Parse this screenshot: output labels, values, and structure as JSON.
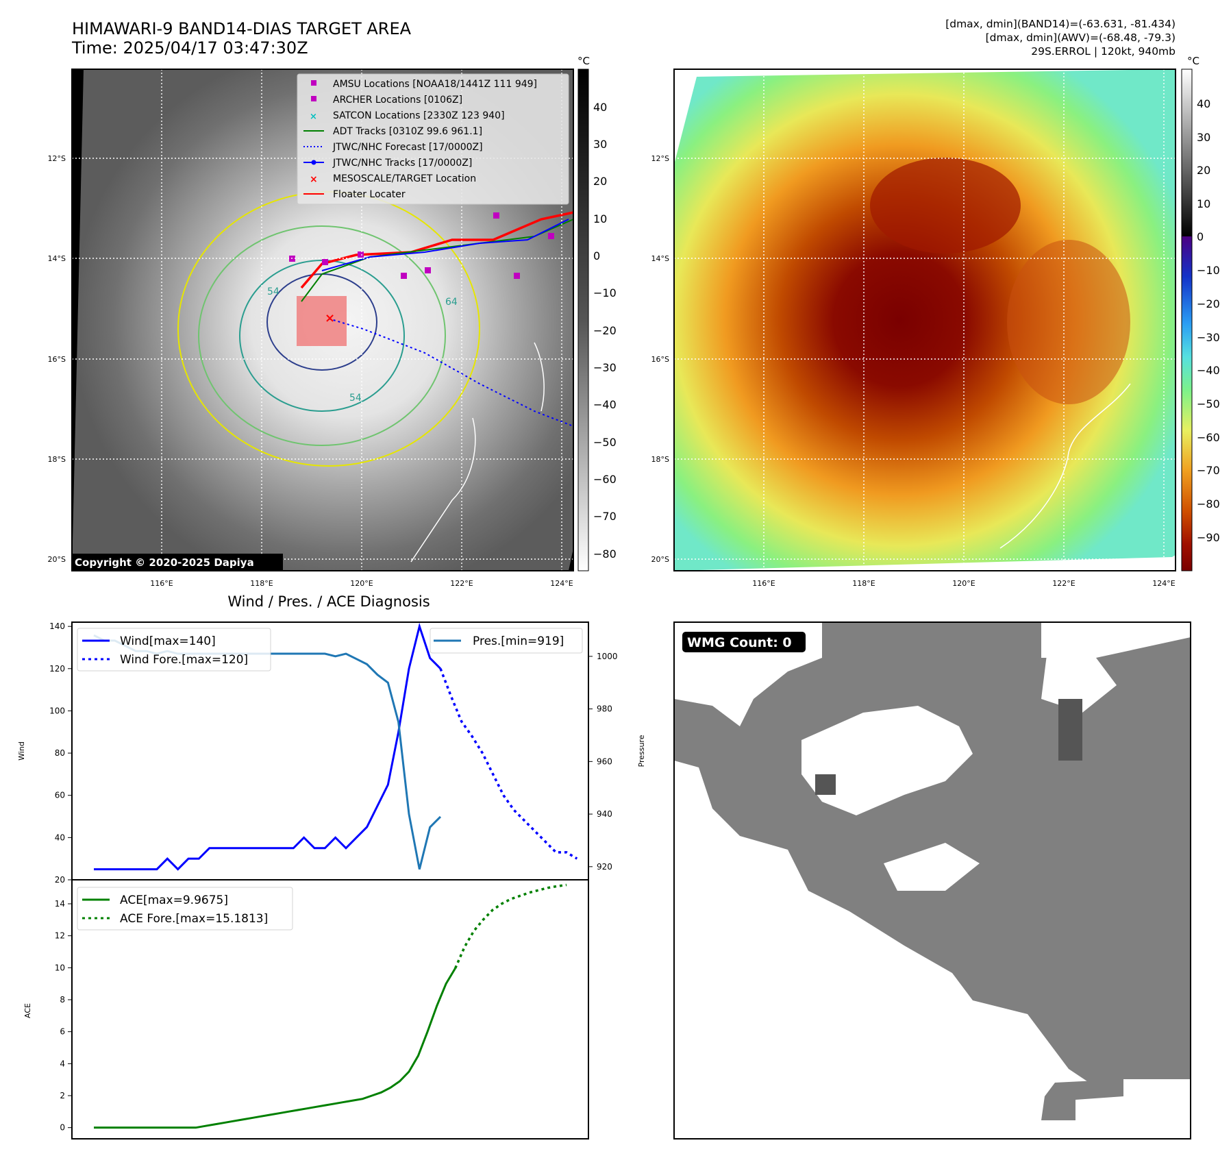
{
  "header": {
    "title_line1": "HIMAWARI-9 BAND14-DIAS TARGET AREA",
    "title_line2": "Time: 2025/04/17 03:47:30Z",
    "info_line1": "[dmax, dmin](BAND14)=(-63.631, -81.434)",
    "info_line2": "[dmax, dmin](AWV)=(-68.48, -79.3)",
    "info_line3": "29S.ERROL | 120kt, 940mb"
  },
  "colors": {
    "wind": "#0000ff",
    "pressure": "#1f77b4",
    "ace": "#008000",
    "track_red": "#ff0000",
    "amsu": "#c000c0",
    "satcon": "#00bfbf"
  },
  "map_left": {
    "colorbar_unit": "°C",
    "colorbar_ticks": [
      "40",
      "30",
      "20",
      "10",
      "0",
      "−10",
      "−20",
      "−30",
      "−40",
      "−50",
      "−60",
      "−70",
      "−80"
    ],
    "lat_labels": [
      "12°S",
      "14°S",
      "16°S",
      "18°S",
      "20°S"
    ],
    "lon_labels": [
      "116°E",
      "118°E",
      "120°E",
      "122°E",
      "124°E"
    ],
    "contour_labels": [
      "54",
      "64",
      "54"
    ],
    "copyright": "Copyright © 2020-2025 Dapiya",
    "legend": [
      {
        "label": "AMSU Locations [NOAA18/1441Z 111 949]",
        "icon": "magenta-square"
      },
      {
        "label": "ARCHER Locations [0106Z]",
        "icon": "magenta-square"
      },
      {
        "label": "SATCON Locations [2330Z 123 940]",
        "icon": "cyan-x"
      },
      {
        "label": "ADT Tracks [0310Z 99.6 961.1]",
        "icon": "green-line"
      },
      {
        "label": "JTWC/NHC Forecast [17/0000Z]",
        "icon": "blue-dotted-line"
      },
      {
        "label": "JTWC/NHC Tracks [17/0000Z]",
        "icon": "blue-dot-line"
      },
      {
        "label": "MESOSCALE/TARGET Location",
        "icon": "red-x"
      },
      {
        "label": "Floater Locater",
        "icon": "red-line"
      }
    ]
  },
  "map_right": {
    "colorbar_unit": "°C",
    "colorbar_ticks": [
      "40",
      "30",
      "20",
      "10",
      "0",
      "−10",
      "−20",
      "−30",
      "−40",
      "−50",
      "−60",
      "−70",
      "−80",
      "−90"
    ],
    "lat_labels": [
      "12°S",
      "14°S",
      "16°S",
      "18°S",
      "20°S"
    ],
    "lon_labels": [
      "116°E",
      "118°E",
      "120°E",
      "122°E",
      "124°E"
    ]
  },
  "wmg": {
    "label": "WMG Count: 0"
  },
  "chart_data": [
    {
      "type": "line",
      "title": "Wind / Pres. / ACE Diagnosis",
      "ylabel": "Wind",
      "y2label": "Pressure",
      "ylim": [
        20,
        142
      ],
      "y2lim": [
        915,
        1013
      ],
      "yticks": [
        20,
        40,
        60,
        80,
        100,
        120,
        140
      ],
      "y2ticks": [
        920,
        940,
        960,
        980,
        1000
      ],
      "series": [
        {
          "name": "Wind[max=140]",
          "style": "solid",
          "values": [
            25,
            25,
            25,
            25,
            25,
            25,
            25,
            30,
            25,
            30,
            30,
            35,
            35,
            35,
            35,
            35,
            35,
            35,
            35,
            35,
            40,
            35,
            35,
            40,
            35,
            40,
            45,
            55,
            65,
            90,
            120,
            140,
            125,
            120
          ]
        },
        {
          "name": "Wind Fore.[max=120]",
          "style": "dotted",
          "values": [
            120,
            107,
            95,
            88,
            80,
            70,
            60,
            53,
            48,
            43,
            38,
            33,
            33,
            30
          ]
        },
        {
          "name": "Pres.[min=919]",
          "style": "solid",
          "values": [
            1008,
            1006,
            1006,
            1004,
            1002,
            1002,
            1001,
            1002,
            1001,
            1001,
            1001,
            1001,
            1001,
            1001,
            1001,
            1001,
            1001,
            1001,
            1001,
            1001,
            1001,
            1001,
            1001,
            1000,
            1001,
            999,
            997,
            993,
            990,
            975,
            940,
            919,
            935,
            939
          ]
        }
      ],
      "forecast_start_index": 33,
      "total_points": 46
    },
    {
      "type": "line",
      "ylabel": "ACE",
      "ylim": [
        -0.7,
        15.5
      ],
      "yticks": [
        0,
        2,
        4,
        6,
        8,
        10,
        12,
        14
      ],
      "series": [
        {
          "name": "ACE[max=9.9675]",
          "style": "solid",
          "values": [
            0,
            0,
            0,
            0,
            0,
            0,
            0,
            0,
            0,
            0,
            0,
            0,
            0.1,
            0.2,
            0.3,
            0.4,
            0.5,
            0.6,
            0.7,
            0.8,
            0.9,
            1.0,
            1.1,
            1.2,
            1.3,
            1.4,
            1.5,
            1.6,
            1.7,
            1.8,
            2.0,
            2.2,
            2.5,
            2.9,
            3.5,
            4.5,
            6.0,
            7.6,
            9.0,
            9.97
          ]
        },
        {
          "name": "ACE Fore.[max=15.1813]",
          "style": "dotted",
          "values": [
            9.97,
            11.3,
            12.3,
            13.0,
            13.6,
            14.0,
            14.3,
            14.5,
            14.7,
            14.85,
            15.0,
            15.1,
            15.18
          ]
        }
      ]
    }
  ]
}
